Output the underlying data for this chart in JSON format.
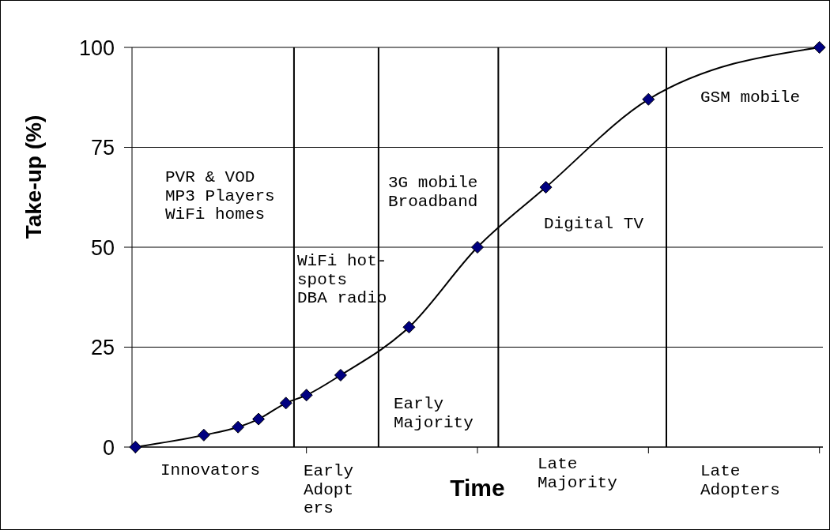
{
  "chart_data": {
    "type": "line",
    "ylabel": "Take-up (%)",
    "xlabel": "Time",
    "categories": [
      null,
      null,
      null,
      null,
      null,
      null,
      null,
      null,
      null,
      null,
      null,
      null,
      null,
      null,
      null,
      null,
      null,
      null,
      null,
      null,
      null,
      null,
      null,
      null,
      null,
      null,
      null,
      null,
      null,
      null,
      null,
      null,
      null,
      null,
      null,
      null,
      null,
      null,
      null,
      null,
      null,
      null,
      null,
      null,
      null,
      null,
      null,
      null,
      null,
      null,
      null,
      null,
      null,
      null,
      null,
      null,
      null,
      null,
      null,
      null,
      null,
      null,
      null,
      null,
      null,
      null,
      null,
      null,
      null,
      null,
      null,
      null,
      null,
      null,
      null,
      null,
      null,
      null,
      null,
      null,
      null,
      null,
      null,
      null,
      null,
      null,
      null,
      null,
      null,
      null,
      null,
      null,
      null,
      null,
      null,
      null,
      null,
      null,
      null,
      null,
      null
    ],
    "series": [
      {
        "color": "#000000",
        "values": [
          0,
          null,
          null,
          null,
          null,
          null,
          null,
          null,
          null,
          null,
          3,
          null,
          null,
          null,
          null,
          5,
          null,
          null,
          7,
          null,
          null,
          null,
          11,
          null,
          null,
          13,
          null,
          null,
          null,
          null,
          18,
          null,
          null,
          null,
          null,
          null,
          null,
          null,
          null,
          null,
          30,
          null,
          null,
          null,
          null,
          null,
          null,
          null,
          null,
          null,
          50,
          null,
          null,
          null,
          null,
          null,
          null,
          null,
          null,
          null,
          65,
          null,
          null,
          null,
          null,
          null,
          null,
          null,
          null,
          null,
          null,
          null,
          null,
          null,
          null,
          87,
          null,
          null,
          null,
          null,
          null,
          null,
          null,
          null,
          null,
          null,
          null,
          null,
          null,
          null,
          null,
          null,
          null,
          null,
          null,
          null,
          null,
          null,
          null,
          null,
          100
        ],
        "colors": [
          "#000080",
          null,
          null,
          null,
          null,
          null,
          null,
          null,
          null,
          null,
          "#000080",
          null,
          null,
          null,
          null,
          "#000080",
          null,
          null,
          "#000080",
          null,
          null,
          null,
          "#000080",
          null,
          null,
          "#000080",
          null,
          null,
          null,
          null,
          "#000080",
          null,
          null,
          null,
          null,
          null,
          null,
          null,
          null,
          null,
          "#000080",
          null,
          null,
          null,
          null,
          null,
          null,
          null,
          null,
          null,
          "#000080",
          null,
          null,
          null,
          null,
          null,
          null,
          null,
          null,
          null,
          "#000080",
          null,
          null,
          null,
          null,
          null,
          null,
          null,
          null,
          null,
          null,
          null,
          null,
          null,
          null,
          "#000080",
          null,
          null,
          null,
          null,
          null,
          null,
          null,
          null,
          null,
          null,
          null,
          null,
          null,
          null,
          null,
          null,
          null,
          null,
          null,
          null,
          null,
          null,
          null,
          null,
          "#000080"
        ]
      }
    ],
    "ylim": [
      0,
      100
    ],
    "yticks": [
      0,
      25,
      50,
      75,
      100
    ],
    "grid": "y",
    "marker": "diamond",
    "line_style": "solid",
    "annotations": [
      "PVR & VOD\nMP3 Players\nWiFi homes",
      "WiFi hot-\nspots\nDBA radio",
      "3G mobile\nBroadband",
      "Digital TV",
      "GSM mobile",
      "Early\nMajority",
      "Innovators",
      "Early\nAdopt\ners",
      "Late\nMajority",
      "Late\nAdopters"
    ]
  }
}
